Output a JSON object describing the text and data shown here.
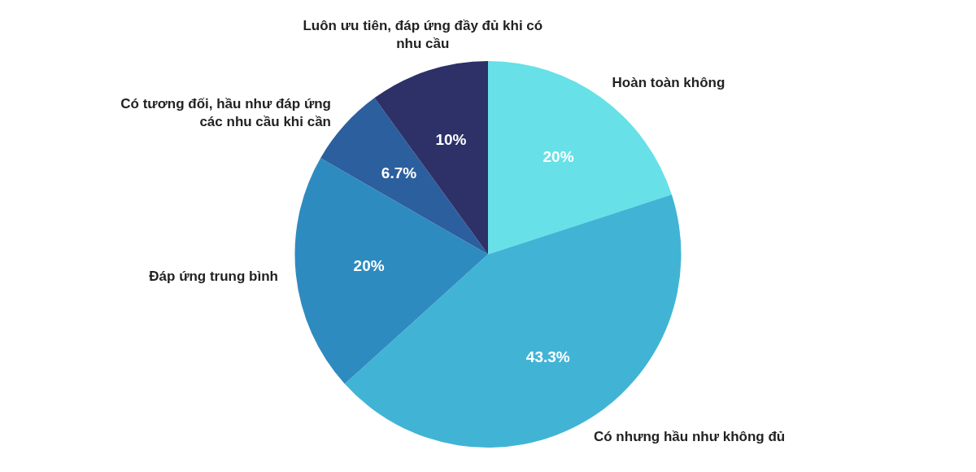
{
  "chart_data": {
    "type": "pie",
    "categories": [
      "Hoàn toàn không",
      "Có nhưng hầu như không đủ",
      "Đáp ứng trung bình",
      "Có tương đối, hầu như đáp ứng các nhu cầu khi cần",
      "Luôn ưu tiên, đáp ứng đầy đủ khi có nhu cầu"
    ],
    "values": [
      20,
      43.3,
      20,
      6.7,
      10
    ],
    "colors": [
      "#67e0e8",
      "#41b4d6",
      "#2e8bc0",
      "#2b5f9e",
      "#2d3168"
    ],
    "value_labels": [
      "20%",
      "43.3%",
      "20%",
      "6.7%",
      "10%"
    ],
    "legend": false
  }
}
